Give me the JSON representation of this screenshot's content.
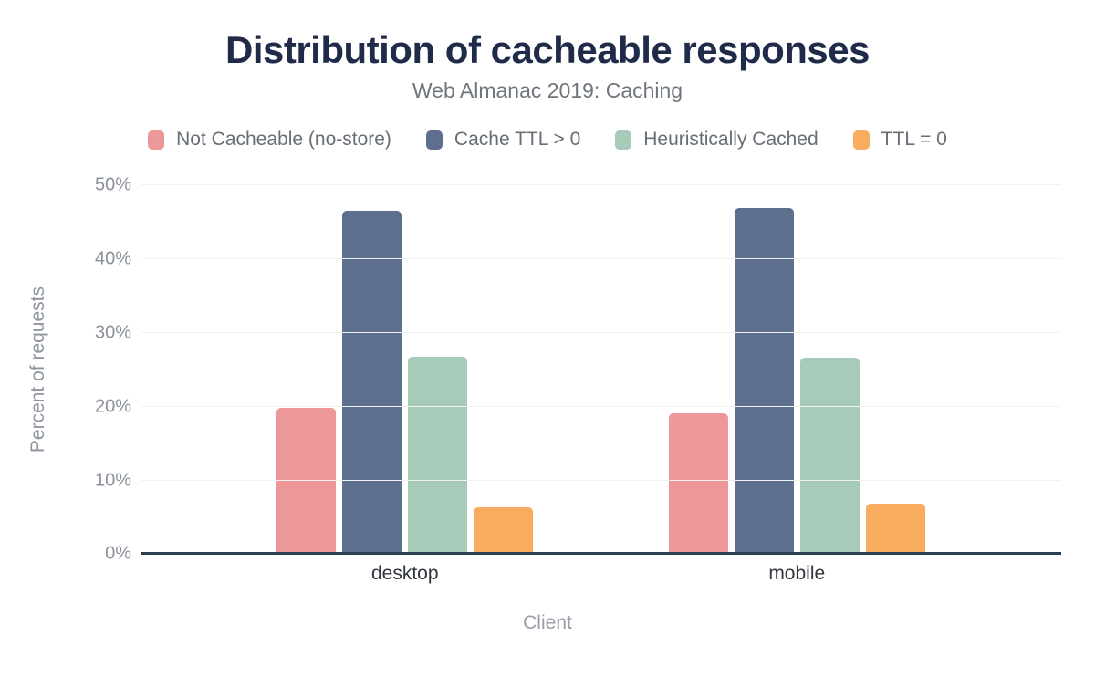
{
  "header": {
    "title": "Distribution of cacheable responses",
    "subtitle": "Web Almanac 2019: Caching"
  },
  "chart_data": {
    "type": "bar",
    "title": "Distribution of cacheable responses",
    "subtitle": "Web Almanac 2019: Caching",
    "categories": [
      "desktop",
      "mobile"
    ],
    "series": [
      {
        "name": "Not Cacheable (no-store)",
        "color": "#EC9899",
        "values": [
          19.8,
          19.1
        ]
      },
      {
        "name": "Cache TTL > 0",
        "color": "#5D6F8D",
        "values": [
          46.6,
          47.0
        ]
      },
      {
        "name": "Heuristically Cached",
        "color": "#A6CBB8",
        "values": [
          26.8,
          26.7
        ]
      },
      {
        "name": "TTL = 0",
        "color": "#F7AC5F",
        "values": [
          6.3,
          6.9
        ]
      }
    ],
    "xlabel": "Client",
    "ylabel": "Percent of requests",
    "ylim": [
      0,
      50
    ],
    "yticks": [
      0,
      10,
      20,
      30,
      40,
      50
    ],
    "ytick_suffix": "%",
    "grid": "horizontal-light",
    "legend_position": "top"
  },
  "colors": {
    "title_text": "#1F2B49",
    "subtitle_text": "#70767E",
    "legend_text": "#686E75",
    "tick_text": "#8A9099",
    "axis_title_text": "#959CA6",
    "category_text": "#31363C",
    "gridline": "#F1F1F2",
    "axis_line": "#2E3E51",
    "background": "#FFFFFF"
  }
}
